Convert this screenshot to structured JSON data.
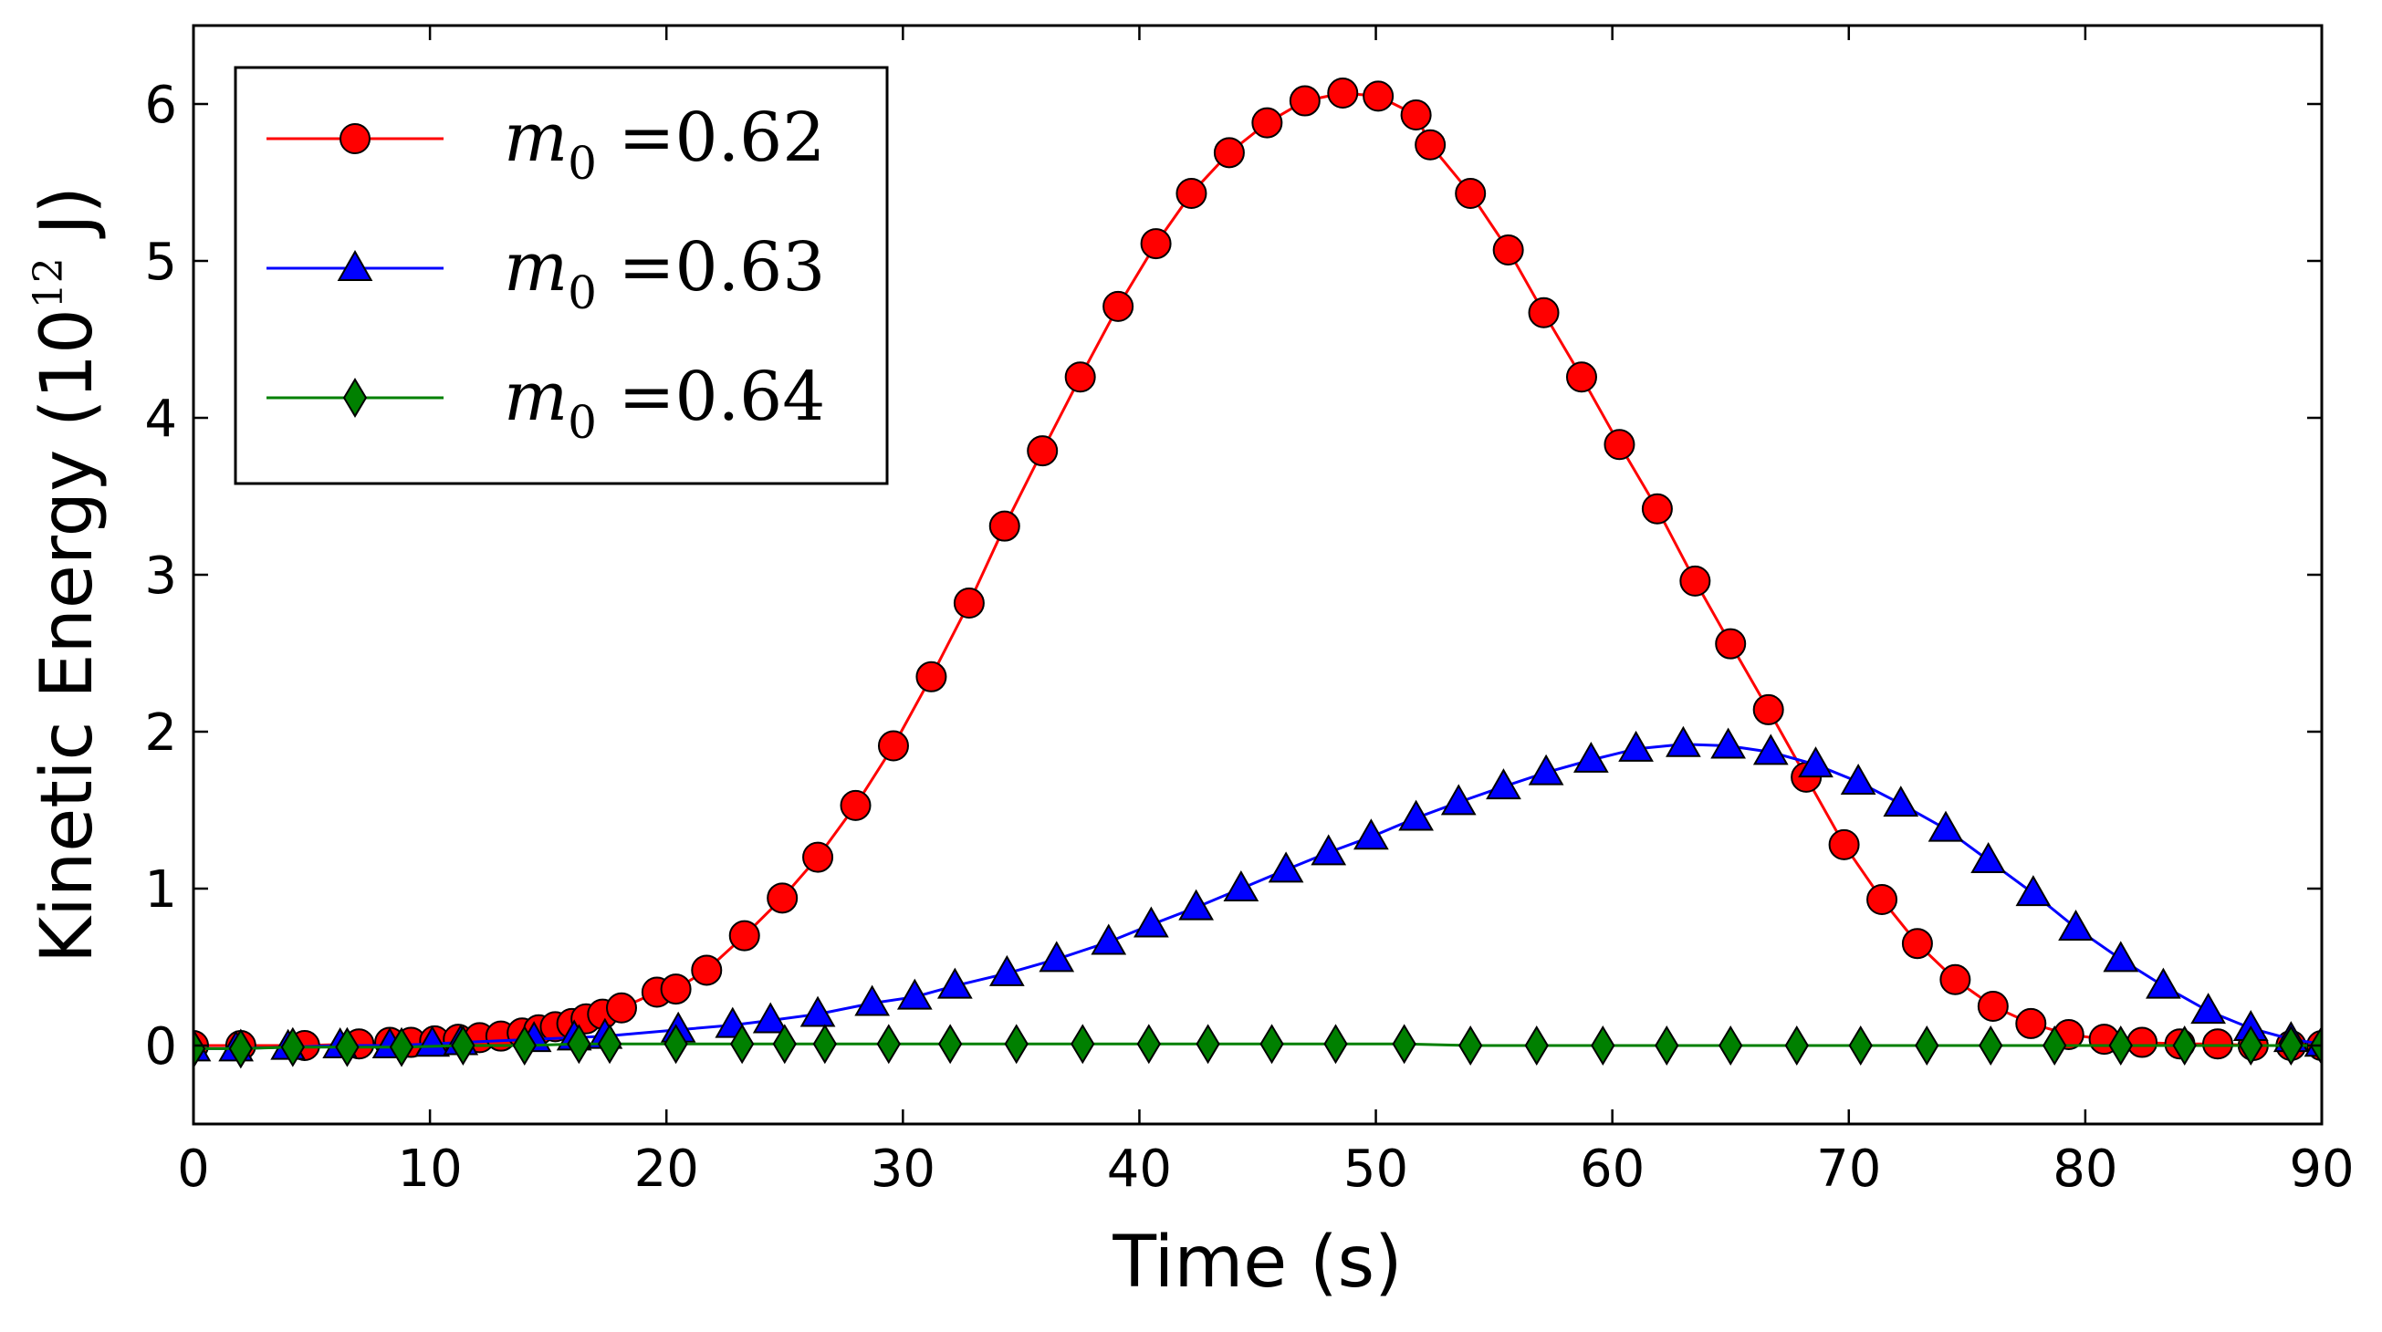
{
  "chart_data": {
    "type": "line",
    "title": "",
    "xlabel": "Time (s)",
    "ylabel_main": "Kinetic Energy (10",
    "ylabel_exp": "12",
    "ylabel_unit": " J)",
    "xlim": [
      0,
      90
    ],
    "ylim": [
      -0.5,
      6.5
    ],
    "x_ticks": [
      "0",
      "10",
      "20",
      "30",
      "40",
      "50",
      "60",
      "70",
      "80",
      "90"
    ],
    "y_ticks": [
      "0",
      "1",
      "2",
      "3",
      "4",
      "5",
      "6"
    ],
    "grid": false,
    "legend_position": "top-left",
    "series": [
      {
        "name_symbol": "m",
        "name_sub": "0",
        "name_value": " =0.62",
        "color": "#ff0000",
        "marker": "circle",
        "x": [
          0,
          2,
          4.7,
          7,
          8.3,
          9.2,
          10.2,
          11.2,
          12.1,
          13,
          13.9,
          14.6,
          15.3,
          16,
          16.6,
          17.3,
          18.1,
          19.6,
          20.4,
          21.7,
          23.3,
          24.9,
          26.4,
          28,
          29.6,
          31.2,
          32.8,
          34.3,
          35.9,
          37.5,
          39.1,
          40.7,
          42.2,
          43.8,
          45.4,
          47,
          48.6,
          50.1,
          51.7,
          52.3,
          54,
          55.6,
          57.1,
          58.7,
          60.3,
          61.9,
          63.5,
          65,
          66.6,
          68.2,
          69.8,
          71.4,
          72.9,
          74.5,
          76.1,
          77.7,
          79.3,
          80.8,
          82.4,
          84,
          85.6,
          87.1,
          88.7,
          90
        ],
        "y": [
          0,
          0,
          0,
          0.01,
          0.02,
          0.02,
          0.03,
          0.04,
          0.05,
          0.06,
          0.08,
          0.1,
          0.12,
          0.14,
          0.17,
          0.2,
          0.24,
          0.34,
          0.36,
          0.48,
          0.7,
          0.94,
          1.2,
          1.53,
          1.91,
          2.35,
          2.82,
          3.31,
          3.79,
          4.26,
          4.71,
          5.11,
          5.43,
          5.69,
          5.88,
          6.02,
          6.07,
          6.05,
          5.93,
          5.74,
          5.43,
          5.07,
          4.67,
          4.26,
          3.83,
          3.42,
          2.96,
          2.56,
          2.14,
          1.71,
          1.28,
          0.93,
          0.65,
          0.42,
          0.25,
          0.14,
          0.07,
          0.04,
          0.02,
          0.01,
          0.01,
          0,
          0,
          0
        ]
      },
      {
        "name_symbol": "m",
        "name_sub": "0",
        "name_value": " =0.63",
        "color": "#0000ff",
        "marker": "triangle",
        "x": [
          0,
          1.8,
          4,
          6.2,
          8.3,
          10.1,
          11.3,
          14.4,
          16.1,
          17.4,
          20.5,
          22.8,
          24.4,
          26.4,
          28.7,
          30.5,
          32.2,
          34.4,
          36.5,
          38.7,
          40.5,
          42.4,
          44.3,
          46.2,
          48,
          49.8,
          51.7,
          53.5,
          55.4,
          57.2,
          59.1,
          61,
          63,
          64.9,
          66.7,
          68.6,
          70.4,
          72.2,
          74.1,
          75.9,
          77.8,
          79.6,
          81.5,
          83.3,
          85.2,
          87,
          88.7,
          90
        ],
        "y": [
          -0.02,
          -0.02,
          -0.01,
          0,
          0,
          0.01,
          0.02,
          0.04,
          0.05,
          0.06,
          0.1,
          0.13,
          0.16,
          0.2,
          0.27,
          0.31,
          0.38,
          0.46,
          0.55,
          0.66,
          0.77,
          0.88,
          1,
          1.12,
          1.23,
          1.33,
          1.45,
          1.55,
          1.65,
          1.74,
          1.82,
          1.89,
          1.92,
          1.91,
          1.87,
          1.79,
          1.68,
          1.54,
          1.38,
          1.18,
          0.97,
          0.75,
          0.55,
          0.38,
          0.22,
          0.11,
          0.04,
          0.01
        ]
      },
      {
        "name_symbol": "m",
        "name_sub": "0",
        "name_value": " =0.64",
        "color": "#008000",
        "marker": "diamond",
        "x": [
          0,
          2,
          4.2,
          6.5,
          8.8,
          11.4,
          14,
          16.3,
          17.6,
          20.4,
          23.2,
          25,
          26.7,
          29.4,
          32,
          34.8,
          37.6,
          40.4,
          42.9,
          45.6,
          48.3,
          51.2,
          54,
          56.8,
          59.6,
          62.3,
          65,
          67.8,
          70.5,
          73.3,
          76,
          78.7,
          81.5,
          84.2,
          87,
          88.7,
          90
        ],
        "y": [
          -0.02,
          -0.02,
          -0.01,
          -0.01,
          -0.01,
          0,
          0,
          0.01,
          0.01,
          0.01,
          0.01,
          0.01,
          0.01,
          0.01,
          0.01,
          0.01,
          0.01,
          0.01,
          0.01,
          0.01,
          0.01,
          0.01,
          0,
          0,
          0,
          0,
          0,
          0,
          0,
          0,
          0,
          0,
          0,
          0,
          0,
          0,
          0
        ]
      }
    ]
  }
}
